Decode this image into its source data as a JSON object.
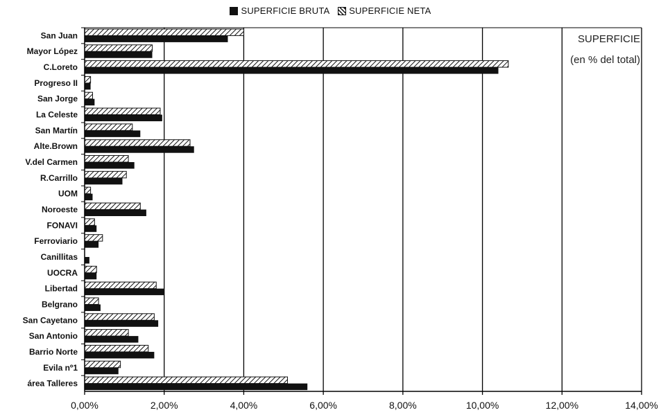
{
  "chart_data": {
    "type": "bar",
    "orientation": "horizontal",
    "categories": [
      "San Juan",
      "Mayor López",
      "C.Loreto",
      "Progreso II",
      "San Jorge",
      "La Celeste",
      "San Martín",
      "Alte.Brown",
      "V.del Carmen",
      "R.Carrillo",
      "UOM",
      "Noroeste",
      "FONAVI",
      "Ferroviario",
      "Canillitas",
      "UOCRA",
      "Libertad",
      "Belgrano",
      "San Cayetano",
      "San Antonio",
      "Barrio Norte",
      "Evila nº1",
      "área Talleres"
    ],
    "series": [
      {
        "name": "SUPERFICIE BRUTA",
        "values": [
          3.6,
          1.7,
          10.4,
          0.15,
          0.25,
          1.95,
          1.4,
          2.75,
          1.25,
          0.95,
          0.2,
          1.55,
          0.3,
          0.35,
          0.12,
          0.3,
          2.0,
          0.4,
          1.85,
          1.35,
          1.75,
          0.85,
          5.6
        ]
      },
      {
        "name": "SUPERFICIE NETA",
        "values": [
          4.0,
          1.7,
          10.65,
          0.15,
          0.2,
          1.9,
          1.2,
          2.65,
          1.1,
          1.05,
          0.15,
          1.4,
          0.25,
          0.45,
          0.0,
          0.3,
          1.8,
          0.35,
          1.75,
          1.1,
          1.6,
          0.9,
          5.1
        ]
      }
    ],
    "xlim": [
      0,
      14
    ],
    "xticks": [
      "0,00%",
      "2,00%",
      "4,00%",
      "6,00%",
      "8,00%",
      "10,00%",
      "12,00%",
      "14,00%"
    ],
    "grid": "vertical",
    "legend_position": "top",
    "annotation": [
      "SUPERFICIE",
      "(en % del total)"
    ],
    "colors": {
      "bruta": "#111111",
      "neta_pattern": "#111111",
      "axis": "#000000"
    }
  }
}
